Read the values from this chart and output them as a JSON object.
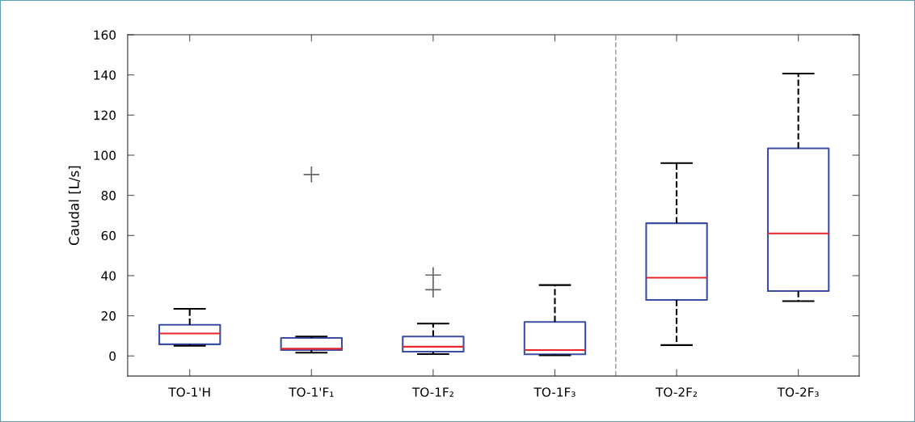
{
  "chart_data": {
    "type": "box",
    "ylabel": "Caudal [L/s]",
    "categories": [
      "TO-1'H",
      "TO-1'F₁",
      "TO-1F₂",
      "TO-1F₃",
      "TO-2F₂",
      "TO-2F₃"
    ],
    "boxes": [
      {
        "low": 5.1,
        "q1": 5.8,
        "median": 11.2,
        "q3": 15.5,
        "high": 23.5
      },
      {
        "low": 1.6,
        "q1": 2.9,
        "median": 3.6,
        "q3": 9.0,
        "high": 9.7,
        "outliers": [
          90.4
        ]
      },
      {
        "low": 0.9,
        "q1": 2.1,
        "median": 4.6,
        "q3": 9.7,
        "high": 16.1,
        "outliers": [
          33,
          40.3
        ]
      },
      {
        "low": 0.3,
        "q1": 0.8,
        "median": 2.9,
        "q3": 16.9,
        "high": 35.3
      },
      {
        "low": 5.4,
        "q1": 27.9,
        "median": 39.0,
        "q3": 66.1,
        "high": 96.1
      },
      {
        "low": 27.3,
        "q1": 32.3,
        "median": 61.0,
        "q3": 103.4,
        "high": 140.7
      }
    ],
    "color": "#3a4fa3",
    "ylim": [
      -10,
      160
    ],
    "yticks": [
      0,
      20,
      40,
      60,
      80,
      100,
      120,
      140,
      160
    ],
    "grid": false
  }
}
